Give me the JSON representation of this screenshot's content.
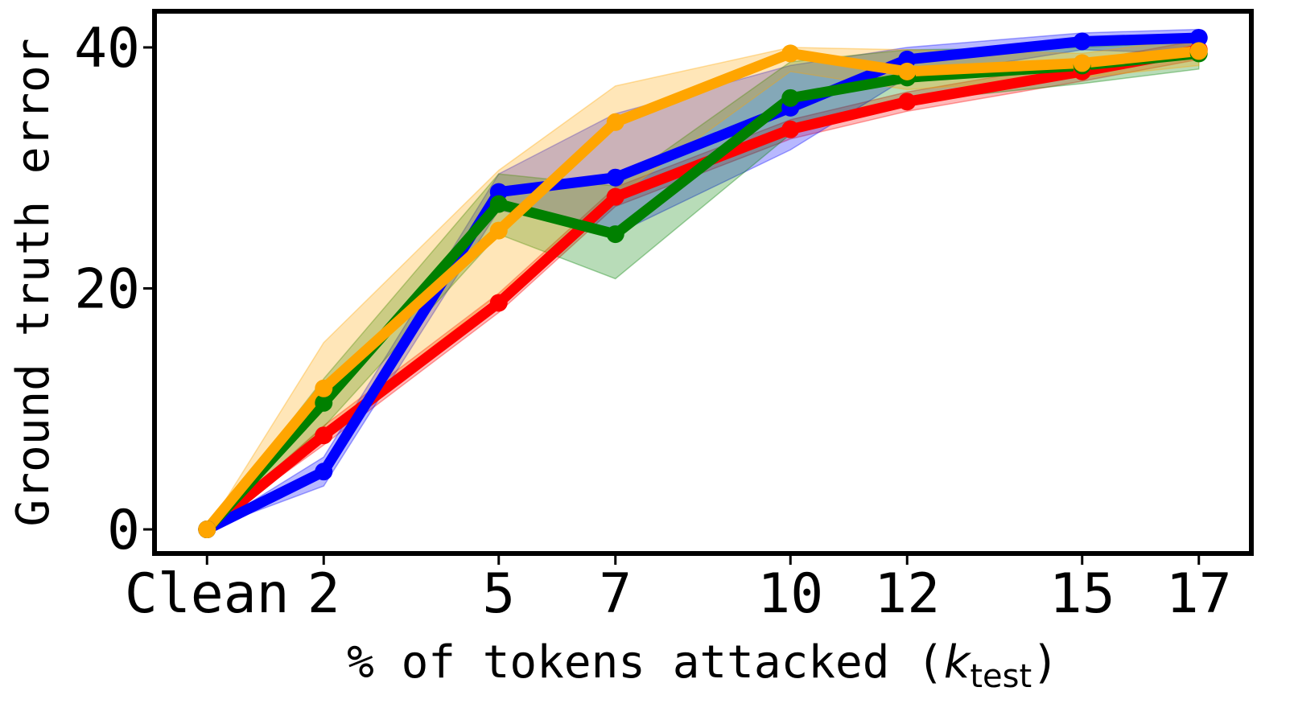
{
  "chart_data": {
    "type": "line",
    "title": "",
    "xlabel": "% of tokens attacked (",
    "xlabel_var": "k",
    "xlabel_sub": "test",
    "xlabel_close": ")",
    "ylabel": "Ground truth error",
    "x": [
      0,
      2,
      5,
      7,
      10,
      12,
      15,
      17
    ],
    "x_tick_labels": [
      "Clean",
      "2",
      "5",
      "7",
      "10",
      "12",
      "15",
      "17"
    ],
    "xlim": [
      -0.9,
      17.9
    ],
    "ylim": [
      -2,
      43
    ],
    "y_ticks": [
      0,
      20,
      40
    ],
    "y_tick_labels": [
      "0",
      "20",
      "40"
    ],
    "grid": false,
    "series": [
      {
        "name": "red",
        "color": "#ff0000",
        "values": [
          0,
          7.8,
          18.8,
          27.6,
          33.2,
          35.5,
          38.0,
          39.8
        ],
        "lower": [
          0,
          7.0,
          18.0,
          26.8,
          32.4,
          34.7,
          37.2,
          39.0
        ],
        "upper": [
          0,
          8.6,
          19.6,
          28.4,
          34.0,
          36.3,
          38.8,
          40.6
        ]
      },
      {
        "name": "blue",
        "color": "#0000ff",
        "values": [
          0,
          4.8,
          28.0,
          29.2,
          35.0,
          39.0,
          40.5,
          40.8
        ],
        "lower": [
          0,
          3.6,
          26.5,
          24.5,
          31.5,
          37.5,
          39.8,
          39.5
        ],
        "upper": [
          0,
          6.0,
          29.5,
          34.5,
          38.5,
          40.0,
          41.2,
          41.5
        ]
      },
      {
        "name": "green",
        "color": "#008000",
        "values": [
          0,
          10.5,
          27.0,
          24.5,
          35.8,
          37.5,
          38.5,
          39.5
        ],
        "lower": [
          0,
          8.5,
          24.5,
          20.8,
          32.8,
          35.5,
          37.0,
          38.2
        ],
        "upper": [
          0,
          12.5,
          29.5,
          28.5,
          38.8,
          39.8,
          40.0,
          40.5
        ]
      },
      {
        "name": "orange",
        "color": "#ffa500",
        "values": [
          0,
          11.7,
          24.8,
          33.8,
          39.5,
          38.0,
          38.7,
          39.7
        ],
        "lower": [
          0,
          8.0,
          19.5,
          27.5,
          38.0,
          36.5,
          37.5,
          38.5
        ],
        "upper": [
          0,
          15.5,
          29.8,
          36.8,
          40.0,
          39.8,
          39.5,
          40.8
        ]
      }
    ]
  }
}
